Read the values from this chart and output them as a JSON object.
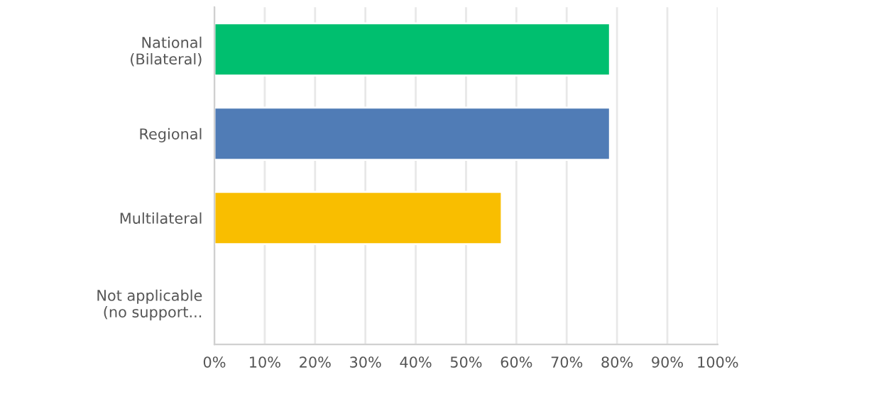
{
  "chart_data": {
    "type": "bar",
    "orientation": "horizontal",
    "categories": [
      "National\n(Bilateral)",
      "Regional",
      "Multilateral",
      "Not applicable\n(no support..."
    ],
    "values": [
      78.6,
      78.6,
      57.1,
      0
    ],
    "colors": [
      "#00bf6f",
      "#507cb6",
      "#f9be00",
      null
    ],
    "xlim": [
      0,
      100
    ],
    "xticks": [
      {
        "value": 0,
        "label": "0%"
      },
      {
        "value": 10,
        "label": "10%"
      },
      {
        "value": 20,
        "label": "20%"
      },
      {
        "value": 30,
        "label": "30%"
      },
      {
        "value": 40,
        "label": "40%"
      },
      {
        "value": 50,
        "label": "50%"
      },
      {
        "value": 60,
        "label": "60%"
      },
      {
        "value": 70,
        "label": "70%"
      },
      {
        "value": 80,
        "label": "80%"
      },
      {
        "value": 90,
        "label": "90%"
      },
      {
        "value": 100,
        "label": "100%"
      }
    ],
    "grid": "x"
  }
}
